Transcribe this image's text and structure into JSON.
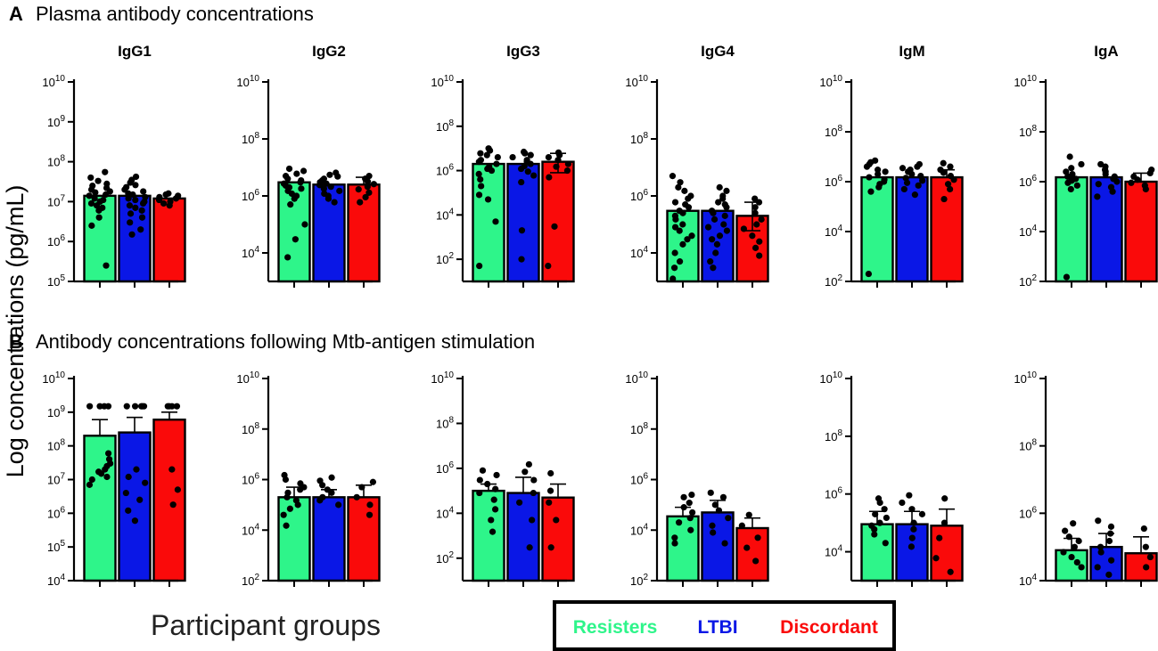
{
  "figure": {
    "y_axis_label": "Log concentrations (pg/mL)",
    "x_axis_label": "Participant groups",
    "panel_a_letter": "A",
    "panel_a_title": "Plasma antibody concentrations",
    "panel_b_letter": "B",
    "panel_b_title": "Antibody concentrations following Mtb-antigen stimulation",
    "legend": [
      {
        "label": "Resisters",
        "color": "#2ef58a"
      },
      {
        "label": "LTBI",
        "color": "#0a17e6"
      },
      {
        "label": "Discordant",
        "color": "#fa0a0a"
      }
    ]
  },
  "chart_data": [
    {
      "type": "bar",
      "panel": "A",
      "title": "IgG1",
      "yscale": "log",
      "ylim": [
        100000.0,
        10000000000.0
      ],
      "ytick_exps": [
        5,
        6,
        7,
        8,
        9,
        10
      ],
      "categories": [
        "Resisters",
        "LTBI",
        "Discordant"
      ],
      "values": [
        14000000,
        14000000,
        12000000
      ],
      "err_high": [
        null,
        null,
        null
      ],
      "err_low": [
        null,
        null,
        null
      ],
      "points": [
        [
          55000000,
          40000000,
          33000000,
          28000000,
          25000000,
          22000000,
          20000000,
          18000000,
          17000000,
          15000000,
          14000000,
          12000000,
          11000000,
          10000000,
          9000000,
          8000000,
          7000000,
          6000000,
          4000000,
          2500000,
          250000
        ],
        [
          42000000,
          35000000,
          30000000,
          26000000,
          23000000,
          20000000,
          18000000,
          16000000,
          15000000,
          13000000,
          12000000,
          11000000,
          10000000,
          9000000,
          8000000,
          7000000,
          6000000,
          5000000,
          4000000,
          3000000,
          2000000,
          1500000
        ],
        [
          16000000,
          15000000,
          14000000,
          13000000,
          12000000,
          11000000,
          10000000,
          9000000,
          8000000
        ]
      ]
    },
    {
      "type": "bar",
      "panel": "A",
      "title": "IgG2",
      "yscale": "log",
      "ylim": [
        1000.0,
        10000000000.0
      ],
      "ytick_exps": [
        4,
        6,
        8,
        10
      ],
      "categories": [
        "Resisters",
        "LTBI",
        "Discordant"
      ],
      "values": [
        3000000,
        2500000,
        2500000
      ],
      "err_high": [
        null,
        null,
        4500000
      ],
      "err_low": [
        null,
        null,
        null
      ],
      "points": [
        [
          9000000,
          7500000,
          6000000,
          5000000,
          4000000,
          3500000,
          3000000,
          2700000,
          2300000,
          2000000,
          1800000,
          1500000,
          1200000,
          1000000,
          800000,
          500000,
          100000,
          30000,
          7000
        ],
        [
          6500000,
          5500000,
          4800000,
          4000000,
          3500000,
          3000000,
          2700000,
          2400000,
          2100000,
          1800000,
          1500000,
          1200000,
          1000000,
          800000,
          600000
        ],
        [
          5000000,
          4000000,
          3200000,
          2600000,
          2100000,
          1700000,
          1300000,
          900000,
          600000
        ]
      ]
    },
    {
      "type": "bar",
      "panel": "A",
      "title": "IgG3",
      "yscale": "log",
      "ylim": [
        10.0,
        10000000000.0
      ],
      "ytick_exps": [
        2,
        4,
        6,
        8,
        10
      ],
      "categories": [
        "Resisters",
        "LTBI",
        "Discordant"
      ],
      "values": [
        2000000,
        2000000,
        2500000
      ],
      "err_high": [
        null,
        null,
        6000000
      ],
      "err_low": [
        null,
        null,
        800000
      ],
      "points": [
        [
          10000000,
          8000000,
          6000000,
          5000000,
          4000000,
          3000000,
          2500000,
          2000000,
          1500000,
          1200000,
          1000000,
          700000,
          400000,
          200000,
          80000,
          50000,
          5000,
          50
        ],
        [
          7000000,
          6000000,
          5000000,
          4000000,
          3000000,
          2500000,
          2000000,
          1600000,
          1200000,
          900000,
          600000,
          300000,
          2000,
          100
        ],
        [
          6500000,
          5000000,
          4000000,
          3000000,
          2000000,
          1500000,
          1000000,
          500000,
          3000,
          50
        ]
      ]
    },
    {
      "type": "bar",
      "panel": "A",
      "title": "IgG4",
      "yscale": "log",
      "ylim": [
        1000.0,
        10000000000.0
      ],
      "ytick_exps": [
        4,
        6,
        8,
        10
      ],
      "categories": [
        "Resisters",
        "LTBI",
        "Discordant"
      ],
      "values": [
        300000,
        300000,
        200000
      ],
      "err_high": [
        null,
        null,
        600000
      ],
      "err_low": [
        null,
        null,
        60000
      ],
      "points": [
        [
          5000000,
          3000000,
          2000000,
          1500000,
          1000000,
          800000,
          600000,
          500000,
          400000,
          300000,
          250000,
          200000,
          150000,
          100000,
          80000,
          60000,
          40000,
          30000,
          20000,
          10000,
          5000,
          3000,
          1000
        ],
        [
          2000000,
          1500000,
          1000000,
          800000,
          600000,
          500000,
          400000,
          300000,
          250000,
          200000,
          150000,
          100000,
          80000,
          60000,
          40000,
          30000,
          20000,
          10000,
          5000,
          3000
        ],
        [
          800000,
          600000,
          400000,
          250000,
          150000,
          100000,
          70000,
          40000,
          25000,
          15000,
          8000
        ]
      ]
    },
    {
      "type": "bar",
      "panel": "A",
      "title": "IgM",
      "yscale": "log",
      "ylim": [
        100.0,
        10000000000.0
      ],
      "ytick_exps": [
        2,
        4,
        6,
        8,
        10
      ],
      "categories": [
        "Resisters",
        "LTBI",
        "Discordant"
      ],
      "values": [
        1500000,
        1500000,
        1500000
      ],
      "err_high": [
        null,
        null,
        3000000
      ],
      "err_low": [
        null,
        null,
        null
      ],
      "points": [
        [
          7000000,
          6000000,
          5000000,
          4000000,
          3000000,
          2500000,
          2000000,
          1500000,
          1200000,
          1000000,
          800000,
          600000,
          400000,
          200
        ],
        [
          5000000,
          4000000,
          3500000,
          3000000,
          2500000,
          2000000,
          1700000,
          1400000,
          1100000,
          900000,
          700000,
          500000,
          300000
        ],
        [
          5500000,
          4000000,
          3000000,
          2300000,
          1700000,
          1200000,
          800000,
          500000,
          200000
        ]
      ]
    },
    {
      "type": "bar",
      "panel": "A",
      "title": "IgA",
      "yscale": "log",
      "ylim": [
        100.0,
        10000000000.0
      ],
      "ytick_exps": [
        2,
        4,
        6,
        8,
        10
      ],
      "categories": [
        "Resisters",
        "LTBI",
        "Discordant"
      ],
      "values": [
        1500000,
        1500000,
        1000000
      ],
      "err_high": [
        null,
        null,
        2200000
      ],
      "err_low": [
        null,
        null,
        null
      ],
      "points": [
        [
          10000000,
          5000000,
          3500000,
          2500000,
          2000000,
          1600000,
          1300000,
          1100000,
          900000,
          700000,
          500000,
          150
        ],
        [
          5000000,
          4000000,
          3000000,
          2500000,
          2000000,
          1600000,
          1300000,
          1000000,
          800000,
          600000,
          400000,
          250000
        ],
        [
          3000000,
          2200000,
          1600000,
          1200000,
          900000,
          700000,
          500000
        ]
      ]
    },
    {
      "type": "bar",
      "panel": "B",
      "title": "",
      "yscale": "log",
      "ylim": [
        10000.0,
        10000000000.0
      ],
      "ytick_exps": [
        4,
        5,
        6,
        7,
        8,
        9,
        10
      ],
      "categories": [
        "Resisters",
        "LTBI",
        "Discordant"
      ],
      "values": [
        200000000,
        250000000,
        600000000
      ],
      "err_high": [
        600000000,
        700000000,
        1000000000
      ],
      "err_low": [
        null,
        null,
        null
      ],
      "points": [
        [
          1500000000,
          1500000000,
          1500000000,
          1500000000,
          60000000,
          40000000,
          30000000,
          25000000,
          20000000,
          17000000,
          15000000,
          12000000,
          10000000,
          7000000
        ],
        [
          1500000000,
          1500000000,
          1500000000,
          1500000000,
          1500000000,
          20000000,
          12000000,
          8000000,
          4000000,
          2500000,
          1200000,
          600000
        ],
        [
          1500000000,
          1500000000,
          1500000000,
          1500000000,
          20000000,
          5000000,
          1800000
        ]
      ]
    },
    {
      "type": "bar",
      "panel": "B",
      "title": "",
      "yscale": "log",
      "ylim": [
        100.0,
        10000000000.0
      ],
      "ytick_exps": [
        2,
        4,
        6,
        8,
        10
      ],
      "categories": [
        "Resisters",
        "LTBI",
        "Discordant"
      ],
      "values": [
        200000,
        200000,
        200000
      ],
      "err_high": [
        500000,
        400000,
        600000
      ],
      "err_low": [
        null,
        null,
        null
      ],
      "points": [
        [
          1500000,
          1000000,
          700000,
          500000,
          400000,
          300000,
          200000,
          150000,
          100000,
          70000,
          40000,
          15000
        ],
        [
          1200000,
          900000,
          600000,
          400000,
          300000,
          200000,
          150000,
          100000
        ],
        [
          800000,
          500000,
          200000,
          100000,
          40000
        ]
      ]
    },
    {
      "type": "bar",
      "panel": "B",
      "title": "",
      "yscale": "log",
      "ylim": [
        10.0,
        10000000000.0
      ],
      "ytick_exps": [
        2,
        4,
        6,
        8,
        10
      ],
      "categories": [
        "Resisters",
        "LTBI",
        "Discordant"
      ],
      "values": [
        100000,
        80000,
        50000
      ],
      "err_high": [
        200000,
        400000,
        200000
      ],
      "err_low": [
        null,
        null,
        null
      ],
      "points": [
        [
          800000,
          500000,
          300000,
          200000,
          120000,
          80000,
          40000,
          15000,
          5000,
          1500
        ],
        [
          1500000,
          700000,
          300000,
          80000,
          30000,
          5000,
          300
        ],
        [
          600000,
          100000,
          30000,
          5000,
          300
        ]
      ]
    },
    {
      "type": "bar",
      "panel": "B",
      "title": "",
      "yscale": "log",
      "ylim": [
        100.0,
        10000000000.0
      ],
      "ytick_exps": [
        2,
        4,
        6,
        8,
        10
      ],
      "categories": [
        "Resisters",
        "LTBI",
        "Discordant"
      ],
      "values": [
        35000,
        50000,
        12000
      ],
      "err_high": [
        80000,
        150000,
        30000
      ],
      "err_low": [
        null,
        null,
        null
      ],
      "points": [
        [
          250000,
          200000,
          120000,
          80000,
          50000,
          30000,
          20000,
          10000,
          5000,
          3000
        ],
        [
          300000,
          200000,
          100000,
          60000,
          30000,
          15000,
          8000,
          3000
        ],
        [
          40000,
          15000,
          5000,
          2000,
          600
        ]
      ]
    },
    {
      "type": "bar",
      "panel": "B",
      "title": "",
      "yscale": "log",
      "ylim": [
        1000.0,
        10000000000.0
      ],
      "ytick_exps": [
        4,
        6,
        8,
        10
      ],
      "categories": [
        "Resisters",
        "LTBI",
        "Discordant"
      ],
      "values": [
        90000,
        90000,
        80000
      ],
      "err_high": [
        250000,
        250000,
        300000
      ],
      "err_low": [
        null,
        null,
        null
      ],
      "points": [
        [
          700000,
          500000,
          300000,
          200000,
          150000,
          100000,
          80000,
          60000,
          40000,
          20000
        ],
        [
          900000,
          500000,
          300000,
          200000,
          100000,
          60000,
          30000,
          15000
        ],
        [
          700000,
          100000,
          30000,
          6000,
          2000
        ]
      ]
    },
    {
      "type": "bar",
      "panel": "B",
      "title": "",
      "yscale": "log",
      "ylim": [
        10000.0,
        10000000000.0
      ],
      "ytick_exps": [
        4,
        6,
        8,
        10
      ],
      "categories": [
        "Resisters",
        "LTBI",
        "Discordant"
      ],
      "values": [
        80000,
        100000,
        65000
      ],
      "err_high": [
        180000,
        250000,
        200000
      ],
      "err_low": [
        null,
        null,
        null
      ],
      "points": [
        [
          500000,
          300000,
          200000,
          150000,
          100000,
          70000,
          50000,
          35000,
          25000
        ],
        [
          600000,
          400000,
          250000,
          150000,
          100000,
          70000,
          40000,
          25000,
          15000
        ],
        [
          350000,
          100000,
          50000,
          25000
        ]
      ]
    }
  ]
}
